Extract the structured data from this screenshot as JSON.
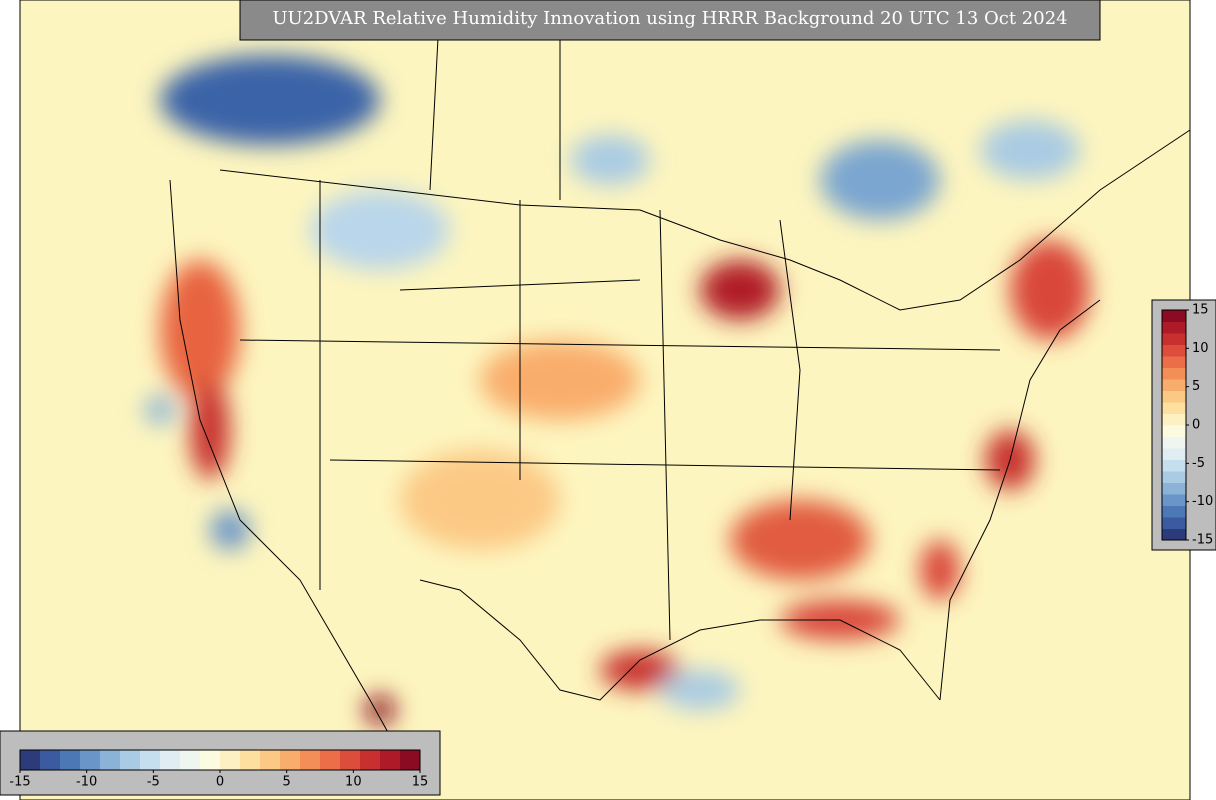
{
  "title": "UU2DVAR Relative Humidity Innovation using HRRR Background 20 UTC 13 Oct 2024",
  "colorbar": {
    "range": [
      -15,
      15
    ],
    "ticks": [
      -15,
      -10,
      -5,
      0,
      5,
      10,
      15
    ],
    "colors": [
      "#2c3b7a",
      "#3b5aa0",
      "#4d78b6",
      "#6a95c8",
      "#8bb3d8",
      "#a9cbe3",
      "#c6dfee",
      "#e0eef3",
      "#eef6ef",
      "#fbfbe0",
      "#fdf0c2",
      "#fde0a0",
      "#fcc985",
      "#f9ad6c",
      "#f48e59",
      "#eb6e49",
      "#dc4e3b",
      "#c8302f",
      "#ae1a27",
      "#8b0c22"
    ]
  }
}
